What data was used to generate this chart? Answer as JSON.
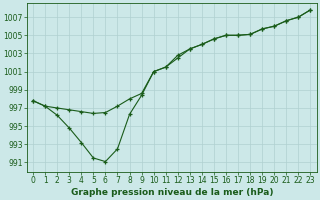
{
  "title": "Graphe pression niveau de la mer (hPa)",
  "background_color": "#cce8e8",
  "line_color": "#1a5c1a",
  "grid_color": "#b0d0d0",
  "xlim": [
    -0.5,
    23.5
  ],
  "ylim": [
    990.0,
    1008.5
  ],
  "yticks": [
    991,
    993,
    995,
    997,
    999,
    1001,
    1003,
    1005,
    1007
  ],
  "xticks": [
    0,
    1,
    2,
    3,
    4,
    5,
    6,
    7,
    8,
    9,
    10,
    11,
    12,
    13,
    14,
    15,
    16,
    17,
    18,
    19,
    20,
    21,
    22,
    23
  ],
  "line1_x": [
    0,
    1,
    2,
    3,
    4,
    5,
    6,
    7,
    8,
    9,
    10,
    11,
    12,
    13,
    14,
    15,
    16,
    17,
    18,
    19,
    20,
    21,
    22,
    23
  ],
  "line1_y": [
    997.8,
    997.2,
    997.0,
    996.8,
    996.6,
    996.4,
    996.5,
    997.2,
    998.0,
    998.6,
    1001.0,
    1001.5,
    1002.8,
    1003.5,
    1004.0,
    1004.6,
    1005.0,
    1005.0,
    1005.1,
    1005.7,
    1006.0,
    1006.6,
    1007.0,
    1007.8
  ],
  "line2_x": [
    0,
    1,
    2,
    3,
    4,
    5,
    6,
    7,
    8,
    9,
    10,
    11,
    12,
    13,
    14,
    15,
    16,
    17,
    18,
    19,
    20,
    21,
    22,
    23
  ],
  "line2_y": [
    997.8,
    997.2,
    996.2,
    994.8,
    993.2,
    991.5,
    991.1,
    992.5,
    996.3,
    998.4,
    1001.0,
    1001.5,
    1002.5,
    1003.5,
    1004.0,
    1004.6,
    1005.0,
    1005.0,
    1005.1,
    1005.7,
    1006.0,
    1006.6,
    1007.0,
    1007.8
  ],
  "marker": "+",
  "marker_size": 3.5,
  "linewidth": 0.8,
  "tick_fontsize": 5.5,
  "xlabel_fontsize": 6.5
}
